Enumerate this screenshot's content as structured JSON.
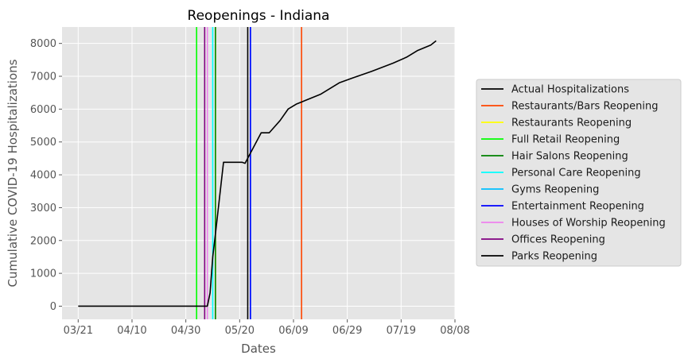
{
  "chart_data": {
    "type": "line",
    "title": "Reopenings - Indiana",
    "xlabel": "Dates",
    "ylabel": "Cumulative COVID-19 Hospitalizations",
    "x_tick_labels": [
      "03/21",
      "04/10",
      "04/30",
      "05/20",
      "06/09",
      "06/29",
      "07/19",
      "08/08"
    ],
    "y_ticks": [
      0,
      1000,
      2000,
      3000,
      4000,
      5000,
      6000,
      7000,
      8000
    ],
    "xlim": [
      "2020-03-15",
      "2020-08-08"
    ],
    "ylim": [
      -400,
      8500
    ],
    "grid": true,
    "legend_position": "outside-right",
    "series": [
      {
        "name": "Actual Hospitalizations",
        "color": "#000000",
        "points": [
          [
            "2020-03-21",
            0
          ],
          [
            "2020-04-10",
            0
          ],
          [
            "2020-04-30",
            0
          ],
          [
            "2020-05-08",
            0
          ],
          [
            "2020-05-09",
            400
          ],
          [
            "2020-05-10",
            1500
          ],
          [
            "2020-05-11",
            2200
          ],
          [
            "2020-05-14",
            4380
          ],
          [
            "2020-05-21",
            4380
          ],
          [
            "2020-05-22",
            4350
          ],
          [
            "2020-05-28",
            5280
          ],
          [
            "2020-05-31",
            5280
          ],
          [
            "2020-06-04",
            5650
          ],
          [
            "2020-06-07",
            6000
          ],
          [
            "2020-06-10",
            6150
          ],
          [
            "2020-06-19",
            6450
          ],
          [
            "2020-06-26",
            6800
          ],
          [
            "2020-07-01",
            6950
          ],
          [
            "2020-07-08",
            7150
          ],
          [
            "2020-07-16",
            7400
          ],
          [
            "2020-07-21",
            7580
          ],
          [
            "2020-07-25",
            7780
          ],
          [
            "2020-07-30",
            7950
          ],
          [
            "2020-08-01",
            8080
          ]
        ]
      }
    ],
    "vertical_lines": [
      {
        "name": "Restaurants/Bars Reopening",
        "date": "2020-06-12",
        "color": "#ff4500"
      },
      {
        "name": "Restaurants Reopening",
        "date": "2020-05-11",
        "color": "#ffff00"
      },
      {
        "name": "Full Retail Reopening",
        "date": "2020-05-04",
        "color": "#00ff00"
      },
      {
        "name": "Hair Salons Reopening",
        "date": "2020-05-11",
        "color": "#008000"
      },
      {
        "name": "Personal Care Reopening",
        "date": "2020-05-10",
        "color": "#00ffff"
      },
      {
        "name": "Gyms Reopening",
        "date": "2020-05-24",
        "color": "#00bfff"
      },
      {
        "name": "Entertainment Reopening",
        "date": "2020-05-24",
        "color": "#0000ff"
      },
      {
        "name": "Houses of Worship Reopening",
        "date": "2020-05-08",
        "color": "#ee82ee"
      },
      {
        "name": "Offices Reopening",
        "date": "2020-05-07",
        "color": "#800080"
      },
      {
        "name": "Parks Reopening",
        "date": "2020-05-23",
        "color": "#000000"
      }
    ]
  }
}
